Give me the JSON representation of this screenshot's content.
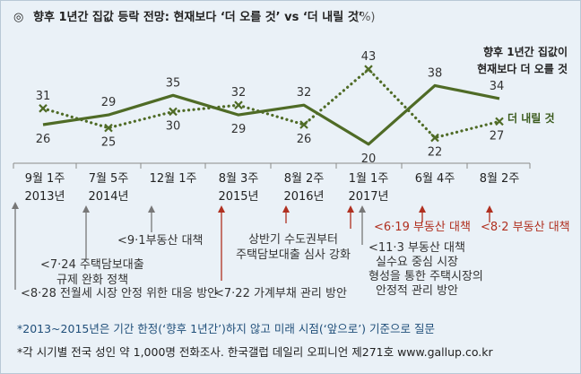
{
  "title": "향후 1년간 집값 등락 전망: 현재보다 ‘더 오를 것’ vs ‘더 내릴 것’",
  "title_unit": "(%)",
  "title_bullet": "◎",
  "chart_data": {
    "type": "line",
    "title": "향후 1년간 집값 등락 전망: 현재보다 ‘더 오를 것’ vs ‘더 내릴 것’ (%)",
    "categories": [
      [
        "9월 1주",
        "2013년"
      ],
      [
        "7월 5주",
        "2014년"
      ],
      [
        "12월 1주",
        ""
      ],
      [
        "8월 3주",
        "2015년"
      ],
      [
        "8월 2주",
        "2016년"
      ],
      [
        "1월 1주",
        "2017년"
      ],
      [
        "6월 4주",
        ""
      ],
      [
        "8월 2주",
        ""
      ]
    ],
    "series": [
      {
        "name": "향후 1년간 집값이 현재보다 더 오를 것",
        "legend_lines": [
          "향후 1년간 집값이",
          "현재보다 더 오를 것"
        ],
        "values": [
          26,
          29,
          35,
          29,
          32,
          20,
          38,
          34
        ],
        "color": "#4f6b26",
        "style": "solid"
      },
      {
        "name": "더 내릴 것",
        "legend_lines": [
          "더 내릴 것"
        ],
        "values": [
          31,
          25,
          30,
          32,
          26,
          43,
          22,
          27
        ],
        "color": "#4f6b26",
        "style": "dotted"
      }
    ],
    "ylim": [
      15,
      48
    ],
    "grid": false,
    "legend": "right"
  },
  "annotations": [
    {
      "lines": [
        "<8·28 전월세 시장 안정 위한 대응 방안"
      ],
      "red": false
    },
    {
      "lines": [
        "<7·24 주택담보대출",
        "규제 완화 정책"
      ],
      "red": false
    },
    {
      "lines": [
        "<9·1부동산 대책"
      ],
      "red": false
    },
    {
      "lines": [
        "<7·22 가계부채 관리 방안"
      ],
      "red": false
    },
    {
      "lines": [
        "상반기 수도권부터",
        "주택담보대출 심사 강화"
      ],
      "red": false
    },
    {
      "lines": [
        "<11·3 부동산 대책",
        "실수요 중심 시장",
        "형성을 통한 주택시장의",
        "안정적 관리 방안"
      ],
      "red": false
    },
    {
      "lines": [
        "<6·19 부동산 대책"
      ],
      "red": true
    },
    {
      "lines": [
        "<8·2 부동산 대책"
      ],
      "red": true
    }
  ],
  "notes": [
    "*2013~2015년은 기간 한정(‘향후 1년간’)하지 않고 미래 시점(‘앞으로’) 기준으로 질문",
    "*각 시기별 전국 성인 약 1,000명 전화조사. 한국갤럽 데일리 오피니언 제271호 www.gallup.co.kr"
  ],
  "colors": {
    "line": "#4f6b26",
    "arrow_gray": "#777777",
    "arrow_red": "#b03020",
    "note_blue": "#1f4e79"
  }
}
